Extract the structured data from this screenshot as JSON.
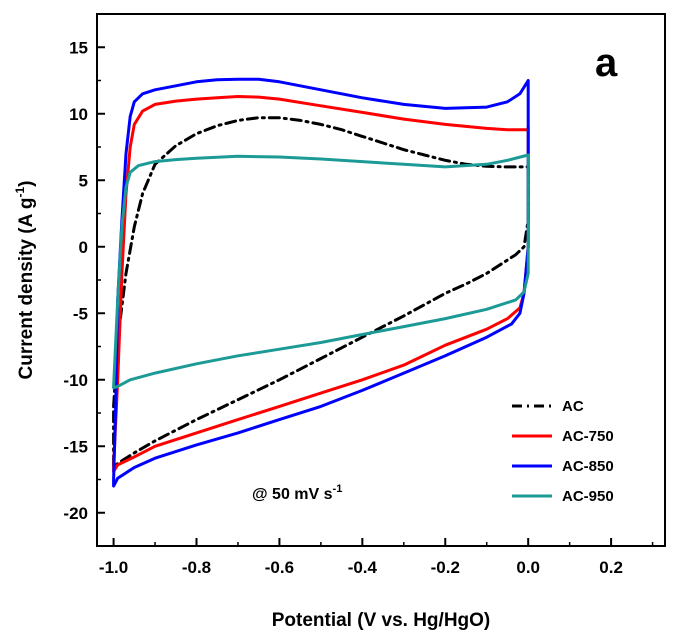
{
  "chart_data": {
    "type": "line",
    "panel_label": "a",
    "xlabel": "Potential (V vs. Hg/HgO)",
    "ylabel": "Current density (A g-1)",
    "ylabel_parts": {
      "main": "Current density (A g",
      "sup": "-1",
      "end": ")"
    },
    "xlim": [
      -1.04,
      0.33
    ],
    "ylim": [
      -22.5,
      17.5
    ],
    "x_ticks": [
      -1.0,
      -0.8,
      -0.6,
      -0.4,
      -0.2,
      0.0,
      0.2
    ],
    "x_tick_labels": [
      "-1.0",
      "-0.8",
      "-0.6",
      "-0.4",
      "-0.2",
      "0.0",
      "0.2"
    ],
    "y_ticks": [
      -20,
      -15,
      -10,
      -5,
      0,
      5,
      10,
      15
    ],
    "y_tick_labels": [
      "-20",
      "-15",
      "-10",
      "-5",
      "0",
      "5",
      "10",
      "15"
    ],
    "grid": false,
    "legend_position": "bottom-right",
    "annotation": {
      "text": "@ 50 mV s",
      "sup": "-1"
    },
    "series": [
      {
        "name": "AC",
        "color": "#000000",
        "dash": "dashdot",
        "x": [
          -1.0,
          -0.99,
          -0.97,
          -0.95,
          -0.93,
          -0.9,
          -0.85,
          -0.8,
          -0.75,
          -0.7,
          -0.65,
          -0.6,
          -0.55,
          -0.5,
          -0.45,
          -0.4,
          -0.35,
          -0.3,
          -0.25,
          -0.2,
          -0.15,
          -0.1,
          -0.05,
          -0.01,
          0.0,
          0.0,
          -0.01,
          -0.03,
          -0.06,
          -0.1,
          -0.15,
          -0.2,
          -0.3,
          -0.4,
          -0.5,
          -0.6,
          -0.7,
          -0.8,
          -0.9,
          -0.95,
          -0.99,
          -1.0,
          -1.0
        ],
        "y": [
          -12.0,
          -7.0,
          -2.0,
          1.5,
          4.0,
          6.2,
          7.6,
          8.5,
          9.1,
          9.5,
          9.7,
          9.7,
          9.5,
          9.2,
          8.8,
          8.3,
          7.8,
          7.3,
          6.9,
          6.5,
          6.2,
          6.05,
          6.0,
          6.0,
          6.0,
          2.0,
          0.0,
          -0.6,
          -1.2,
          -2.0,
          -2.8,
          -3.5,
          -5.2,
          -6.8,
          -8.4,
          -10.0,
          -11.5,
          -13.0,
          -14.6,
          -15.5,
          -16.3,
          -16.6,
          -12.0
        ]
      },
      {
        "name": "AC-750",
        "color": "#ff0000",
        "dash": "solid",
        "x": [
          -1.0,
          -0.99,
          -0.98,
          -0.97,
          -0.96,
          -0.95,
          -0.93,
          -0.9,
          -0.85,
          -0.8,
          -0.75,
          -0.7,
          -0.65,
          -0.6,
          -0.5,
          -0.4,
          -0.3,
          -0.2,
          -0.1,
          -0.05,
          0.0,
          0.0,
          0.0,
          -0.01,
          -0.02,
          -0.05,
          -0.1,
          -0.2,
          -0.3,
          -0.4,
          -0.5,
          -0.6,
          -0.7,
          -0.8,
          -0.9,
          -0.95,
          -0.99,
          -1.0,
          -1.0
        ],
        "y": [
          -16.5,
          -10.0,
          -2.0,
          4.0,
          7.5,
          9.2,
          10.2,
          10.7,
          10.95,
          11.1,
          11.2,
          11.3,
          11.25,
          11.1,
          10.6,
          10.1,
          9.6,
          9.2,
          8.9,
          8.8,
          8.8,
          9.0,
          0.0,
          -3.5,
          -4.6,
          -5.4,
          -6.2,
          -7.4,
          -8.9,
          -10.0,
          -11.0,
          -12.0,
          -13.0,
          -14.0,
          -15.0,
          -15.8,
          -16.4,
          -16.9,
          -16.5
        ]
      },
      {
        "name": "AC-850",
        "color": "#0000ff",
        "dash": "solid",
        "x": [
          -1.0,
          -0.995,
          -0.99,
          -0.98,
          -0.97,
          -0.96,
          -0.95,
          -0.93,
          -0.9,
          -0.85,
          -0.8,
          -0.75,
          -0.7,
          -0.65,
          -0.6,
          -0.5,
          -0.4,
          -0.3,
          -0.2,
          -0.1,
          -0.05,
          -0.02,
          0.0,
          0.0,
          0.0,
          -0.01,
          -0.02,
          -0.04,
          -0.1,
          -0.2,
          -0.3,
          -0.4,
          -0.5,
          -0.6,
          -0.7,
          -0.8,
          -0.9,
          -0.95,
          -0.99,
          -1.0,
          -1.0
        ],
        "y": [
          -17.5,
          -12.0,
          -4.0,
          2.0,
          7.0,
          9.8,
          10.9,
          11.5,
          11.8,
          12.1,
          12.4,
          12.55,
          12.6,
          12.6,
          12.4,
          11.8,
          11.2,
          10.7,
          10.4,
          10.5,
          10.9,
          11.5,
          12.5,
          5.0,
          0.0,
          -3.5,
          -5.0,
          -5.8,
          -6.8,
          -8.2,
          -9.5,
          -10.8,
          -12.0,
          -13.0,
          -14.0,
          -14.9,
          -15.9,
          -16.6,
          -17.4,
          -18.0,
          -17.5
        ]
      },
      {
        "name": "AC-950",
        "color": "#1c9a96",
        "dash": "solid",
        "x": [
          -1.0,
          -0.99,
          -0.98,
          -0.97,
          -0.96,
          -0.94,
          -0.9,
          -0.85,
          -0.8,
          -0.7,
          -0.6,
          -0.5,
          -0.4,
          -0.3,
          -0.2,
          -0.1,
          -0.05,
          0.0,
          0.0,
          0.0,
          -0.01,
          -0.03,
          -0.1,
          -0.2,
          -0.3,
          -0.4,
          -0.5,
          -0.6,
          -0.7,
          -0.8,
          -0.9,
          -0.96,
          -0.99,
          -1.0,
          -1.0
        ],
        "y": [
          -10.5,
          -4.0,
          1.5,
          4.5,
          5.6,
          6.1,
          6.4,
          6.55,
          6.65,
          6.8,
          6.75,
          6.6,
          6.4,
          6.2,
          6.0,
          6.2,
          6.5,
          6.9,
          3.0,
          -2.0,
          -3.4,
          -4.0,
          -4.7,
          -5.4,
          -6.0,
          -6.6,
          -7.2,
          -7.7,
          -8.2,
          -8.8,
          -9.5,
          -10.0,
          -10.5,
          -10.6,
          -10.5
        ]
      }
    ]
  }
}
